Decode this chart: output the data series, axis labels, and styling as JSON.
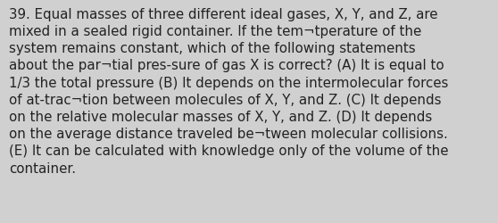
{
  "text": "39. Equal masses of three different ideal gases, X, Y, and Z, are\nmixed in a sealed rigid container. If the tem¬tperature of the\nsystem remains constant, which of the following statements\nabout the par¬tial pres-sure of gas X is correct? (A) It is equal to\n1/3 the total pressure (B) It depends on the intermolecular forces\nof at-trac¬tion between molecules of X, Y, and Z. (C) It depends\non the relative molecular masses of X, Y, and Z. (D) It depends\non the average distance traveled be¬tween molecular collisions.\n(E) It can be calculated with knowledge only of the volume of the\ncontainer.",
  "background_color": "#d0d0d0",
  "text_color": "#222222",
  "font_size": 10.8,
  "fig_width": 5.58,
  "fig_height": 2.51,
  "dpi": 100
}
